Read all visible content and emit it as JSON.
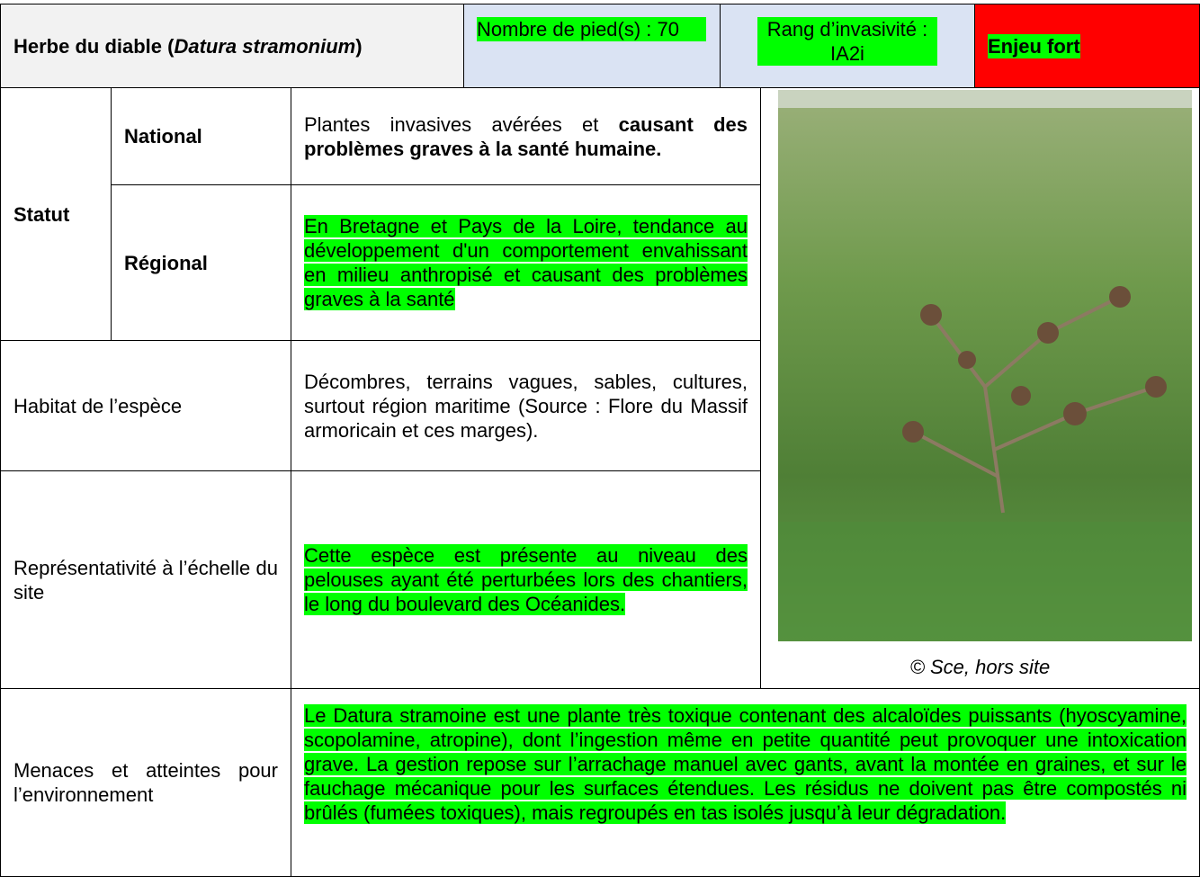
{
  "header": {
    "title_prefix": "Herbe du diable (",
    "title_latin": "Datura stramonium",
    "title_suffix": ")",
    "count": "Nombre de pied(s) : 70",
    "rank": "Rang d’invasivité : IA2i",
    "stake": "Enjeu fort"
  },
  "status": {
    "label": "Statut",
    "national": {
      "label": "National",
      "text_plain": "Plantes invasives avérées et ",
      "text_bold": "causant des problèmes graves à la santé humaine."
    },
    "regional": {
      "label": "Régional",
      "text": "En Bretagne et Pays de la Loire, tendance au développement d'un comportement envahissant en milieu anthropisé et causant des problèmes graves à la santé"
    }
  },
  "habitat": {
    "label": "Habitat de l’espèce",
    "text": "Décombres, terrains vagues, sables, cultures, surtout région maritime (Source : Flore du Massif armoricain et ces marges)."
  },
  "representativeness": {
    "label": "Représentativité à l’échelle du site",
    "text": "Cette espèce est présente au niveau des pelouses ayant été perturbées lors des chantiers, le long du boulevard des Océanides."
  },
  "photo": {
    "caption": "© Sce, hors site"
  },
  "threats": {
    "label": "Menaces et atteintes pour l’environnement",
    "text": "Le Datura stramoine est une plante très toxique contenant des alcaloïdes puissants (hyoscyamine, scopolamine, atropine), dont l’ingestion même en petite quantité peut provoquer une intoxication grave. La gestion repose sur l’arrachage manuel avec gants, avant la montée en graines, et sur le fauchage mécanique pour les surfaces étendues. Les résidus ne doivent pas être compostés ni brûlés (fumées toxiques), mais regroupés en tas isolés jusqu’à leur dégradation."
  }
}
